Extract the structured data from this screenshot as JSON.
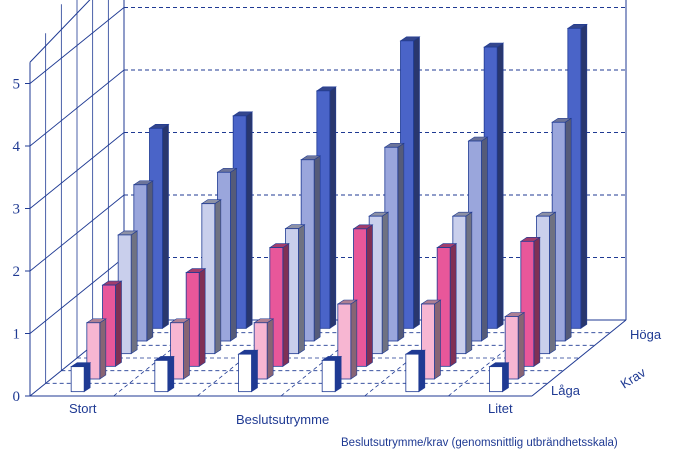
{
  "chart_data": {
    "type": "bar",
    "subtype": "3d-grouped",
    "title": "",
    "caption": "Beslutsutrymme/krav (genomsnittlig utbrändhetsskala)",
    "xlabel": "Beslutsutrymme",
    "x_end_labels": {
      "left": "Stort",
      "right": "Litet"
    },
    "depth_label": "Krav",
    "depth_end_labels": {
      "front": "Låga",
      "back": "Höga"
    },
    "yticks": [
      "0",
      "1",
      "2",
      "3",
      "4",
      "5"
    ],
    "ylim": [
      0,
      5.5
    ],
    "grid": true,
    "group_count": 6,
    "series": [
      {
        "color": "#ffffff",
        "values": [
          0.4,
          0.5,
          0.6,
          0.5,
          0.6,
          0.4
        ]
      },
      {
        "color": "#f7b6d2",
        "values": [
          0.9,
          0.9,
          0.9,
          1.2,
          1.2,
          1.0
        ]
      },
      {
        "color": "#e8579a",
        "values": [
          1.3,
          1.5,
          1.9,
          2.2,
          1.9,
          2.0
        ]
      },
      {
        "color": "#c9cfec",
        "values": [
          1.9,
          2.4,
          2.0,
          2.2,
          2.2,
          2.2
        ]
      },
      {
        "color": "#9aa6dc",
        "values": [
          2.5,
          2.7,
          2.9,
          3.1,
          3.2,
          3.5
        ]
      },
      {
        "color": "#4a64c8",
        "values": [
          3.2,
          3.4,
          3.8,
          4.6,
          4.5,
          4.8
        ]
      }
    ]
  }
}
